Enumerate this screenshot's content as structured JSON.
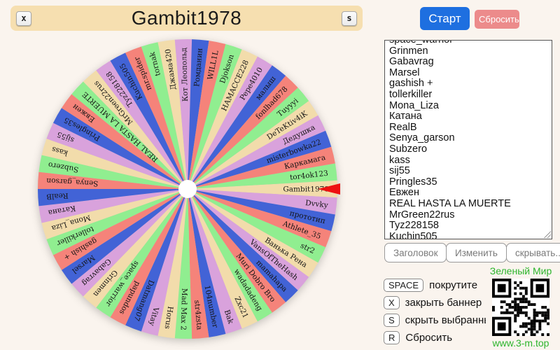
{
  "banner": {
    "close_key": "x",
    "title": "Gambit1978",
    "hide_key": "s"
  },
  "controls": {
    "start_label": "Старт",
    "reset_label": "Сбросить"
  },
  "name_list": {
    "visible_lines": [
      "space_warrior",
      "Grinmen",
      "Gabavrag",
      "Marsel",
      "gashish +",
      "tollerkiller",
      "Mona_Liza",
      "Катана",
      "RealB",
      "Senya_garson",
      "Subzero",
      "kass",
      "sij55",
      "Pringles35",
      "Евжен",
      "REAL HASTA LA MUERTE",
      "MrGreen22rus",
      "Tyz228158",
      "Kuchin505"
    ]
  },
  "list_buttons": {
    "header_label": "Заголовок",
    "edit_label": "Изменить",
    "hide_label": "скрывать..."
  },
  "hotkeys": [
    {
      "key": "SPACE",
      "label": "покрутите"
    },
    {
      "key": "X",
      "label": "закрыть баннер"
    },
    {
      "key": "S",
      "label": "скрыть выбранный эл"
    },
    {
      "key": "R",
      "label": "Сбросить"
    }
  ],
  "qr": {
    "title": "Зеленый Мир",
    "url": "www.3-m.top"
  },
  "wheel": {
    "selected": "Gambit1978",
    "pointer_color": "#ee1010",
    "palette": [
      "#f2dcab",
      "#d9a2dc",
      "#4263d6",
      "#f5837a",
      "#90ee90"
    ],
    "segments_clockwise_from_pointer": [
      "Gambit1978",
      "Dvvky",
      "прототип",
      "Athlete_35",
      "str2",
      "Ванька Рена",
      "VansOfTheHash",
      "mamahapa",
      "Muri Dobro Bro",
      "wadadadeng",
      "Zxc21",
      "Bak",
      "104number",
      "str4zsta",
      "Mad Max 2",
      "Horus",
      "Vitay",
      "Datmang07",
      "papundos",
      "space_warrior",
      "Grinmen",
      "Gabavrag",
      "Marsel",
      "gashish +",
      "tollerkiller",
      "Mona_Liza",
      "Катана",
      "RealB",
      "Senya_garson",
      "Subzero",
      "kass",
      "sij55",
      "Pringles35",
      "Евжен",
      "REAL HASTA LA MUERTE",
      "MrGreen22rus",
      "Tyz228158",
      "Kuchin505",
      "mr.spider",
      "tornak",
      "Джама420",
      "Кот Леопольд",
      "Ромданин",
      "WILL1L",
      "Djokson",
      "HAMACCE228",
      "Pepe4010",
      "малыш",
      "fonlhad678",
      "Tuyyyi",
      "DeTeKtiv4iK",
      "Дедушка",
      "misterbowka22",
      "Каркамага",
      "tor4ok123"
    ]
  }
}
